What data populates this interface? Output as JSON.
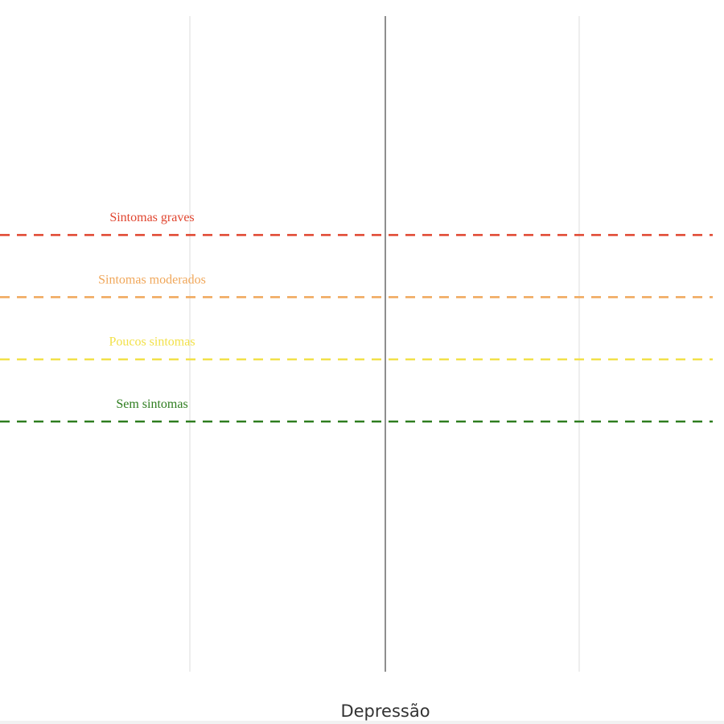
{
  "chart_data": {
    "type": "line",
    "xlabel": "Depressão",
    "ylabel": "",
    "title": "",
    "grid": true,
    "thresholds": [
      {
        "label": "Sintomas graves",
        "color": "#e0452f",
        "level": 4
      },
      {
        "label": "Sintomas moderados",
        "color": "#f0a75a",
        "level": 3
      },
      {
        "label": "Poucos sintomas",
        "color": "#f2e14a",
        "level": 2
      },
      {
        "label": "Sem sintomas",
        "color": "#2e7d1f",
        "level": 1
      }
    ]
  }
}
